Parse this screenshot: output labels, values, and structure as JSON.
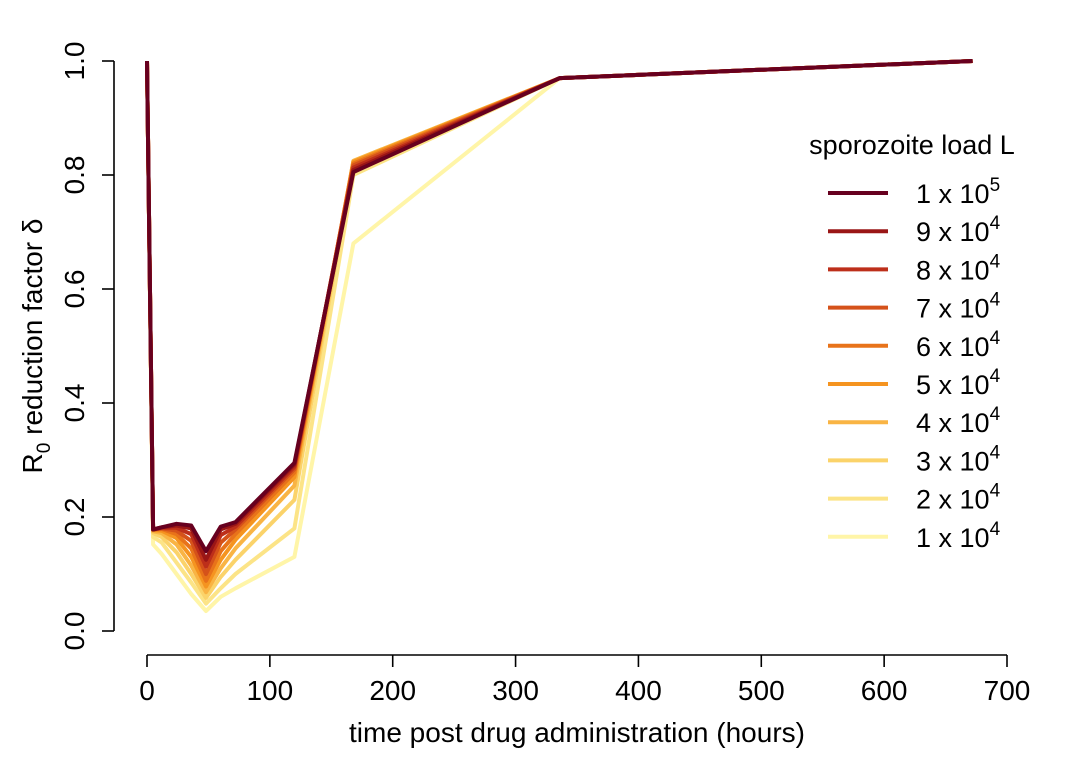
{
  "chart_data": {
    "type": "line",
    "xlabel": "time post drug administration (hours)",
    "ylabel": {
      "main": "R",
      "sub": "0",
      "rest": " reduction factor δ"
    },
    "xlim": [
      0,
      700
    ],
    "ylim": [
      0,
      1
    ],
    "xticks": [
      0,
      100,
      200,
      300,
      400,
      500,
      600,
      700
    ],
    "yticks": [
      0.0,
      0.2,
      0.4,
      0.6,
      0.8,
      1.0
    ],
    "ytick_labels": [
      "0.0",
      "0.2",
      "0.4",
      "0.6",
      "0.8",
      "1.0"
    ],
    "grid": false,
    "legend": {
      "title": "sporozoite load L",
      "position": "right"
    },
    "series": [
      {
        "label": {
          "base": "1 x 10",
          "exp": "4"
        },
        "color": "#fff5a8",
        "points": [
          [
            0,
            1.0
          ],
          [
            5,
            0.152
          ],
          [
            12,
            0.135
          ],
          [
            24,
            0.1
          ],
          [
            36,
            0.065
          ],
          [
            48,
            0.035
          ],
          [
            60,
            0.06
          ],
          [
            72,
            0.075
          ],
          [
            120,
            0.13
          ],
          [
            168,
            0.68
          ],
          [
            336,
            0.97
          ],
          [
            672,
            1.0
          ]
        ]
      },
      {
        "label": {
          "base": "2 x 10",
          "exp": "4"
        },
        "color": "#fce487",
        "points": [
          [
            0,
            1.0
          ],
          [
            5,
            0.165
          ],
          [
            12,
            0.155
          ],
          [
            24,
            0.12
          ],
          [
            36,
            0.085
          ],
          [
            48,
            0.048
          ],
          [
            60,
            0.075
          ],
          [
            72,
            0.1
          ],
          [
            120,
            0.18
          ],
          [
            168,
            0.8
          ],
          [
            336,
            0.97
          ],
          [
            672,
            1.0
          ]
        ]
      },
      {
        "label": {
          "base": "3 x 10",
          "exp": "4"
        },
        "color": "#fbd36a",
        "points": [
          [
            0,
            1.0
          ],
          [
            5,
            0.172
          ],
          [
            12,
            0.165
          ],
          [
            24,
            0.138
          ],
          [
            36,
            0.1
          ],
          [
            48,
            0.058
          ],
          [
            60,
            0.095
          ],
          [
            72,
            0.125
          ],
          [
            120,
            0.23
          ],
          [
            168,
            0.825
          ],
          [
            336,
            0.97
          ],
          [
            672,
            1.0
          ]
        ]
      },
      {
        "label": {
          "base": "4 x 10",
          "exp": "4"
        },
        "color": "#f9b444",
        "points": [
          [
            0,
            1.0
          ],
          [
            5,
            0.175
          ],
          [
            12,
            0.172
          ],
          [
            24,
            0.152
          ],
          [
            36,
            0.115
          ],
          [
            48,
            0.068
          ],
          [
            60,
            0.11
          ],
          [
            72,
            0.145
          ],
          [
            120,
            0.255
          ],
          [
            168,
            0.825
          ],
          [
            336,
            0.97
          ],
          [
            672,
            1.0
          ]
        ]
      },
      {
        "label": {
          "base": "5 x 10",
          "exp": "4"
        },
        "color": "#f59420",
        "points": [
          [
            0,
            1.0
          ],
          [
            5,
            0.177
          ],
          [
            12,
            0.176
          ],
          [
            24,
            0.163
          ],
          [
            36,
            0.13
          ],
          [
            48,
            0.078
          ],
          [
            60,
            0.125
          ],
          [
            72,
            0.16
          ],
          [
            120,
            0.27
          ],
          [
            168,
            0.823
          ],
          [
            336,
            0.97
          ],
          [
            672,
            1.0
          ]
        ]
      },
      {
        "label": {
          "base": "6 x 10",
          "exp": "4"
        },
        "color": "#e8731a",
        "points": [
          [
            0,
            1.0
          ],
          [
            5,
            0.178
          ],
          [
            12,
            0.179
          ],
          [
            24,
            0.17
          ],
          [
            36,
            0.145
          ],
          [
            48,
            0.088
          ],
          [
            60,
            0.14
          ],
          [
            72,
            0.17
          ],
          [
            120,
            0.278
          ],
          [
            168,
            0.82
          ],
          [
            336,
            0.97
          ],
          [
            672,
            1.0
          ]
        ]
      },
      {
        "label": {
          "base": "7 x 10",
          "exp": "4"
        },
        "color": "#d5521a",
        "points": [
          [
            0,
            1.0
          ],
          [
            5,
            0.178
          ],
          [
            12,
            0.18
          ],
          [
            24,
            0.176
          ],
          [
            36,
            0.158
          ],
          [
            48,
            0.1
          ],
          [
            60,
            0.155
          ],
          [
            72,
            0.178
          ],
          [
            120,
            0.284
          ],
          [
            168,
            0.817
          ],
          [
            336,
            0.97
          ],
          [
            672,
            1.0
          ]
        ]
      },
      {
        "label": {
          "base": "8 x 10",
          "exp": "4"
        },
        "color": "#bd2f1a",
        "points": [
          [
            0,
            1.0
          ],
          [
            5,
            0.178
          ],
          [
            12,
            0.181
          ],
          [
            24,
            0.181
          ],
          [
            36,
            0.17
          ],
          [
            48,
            0.113
          ],
          [
            60,
            0.168
          ],
          [
            72,
            0.183
          ],
          [
            120,
            0.288
          ],
          [
            168,
            0.813
          ],
          [
            336,
            0.97
          ],
          [
            672,
            1.0
          ]
        ]
      },
      {
        "label": {
          "base": "9 x 10",
          "exp": "4"
        },
        "color": "#9a1616",
        "points": [
          [
            0,
            1.0
          ],
          [
            5,
            0.178
          ],
          [
            12,
            0.182
          ],
          [
            24,
            0.185
          ],
          [
            36,
            0.18
          ],
          [
            48,
            0.125
          ],
          [
            60,
            0.178
          ],
          [
            72,
            0.188
          ],
          [
            120,
            0.292
          ],
          [
            168,
            0.809
          ],
          [
            336,
            0.97
          ],
          [
            672,
            1.0
          ]
        ]
      },
      {
        "label": {
          "base": "1 x 10",
          "exp": "5"
        },
        "color": "#67001f",
        "points": [
          [
            0,
            1.0
          ],
          [
            5,
            0.178
          ],
          [
            12,
            0.182
          ],
          [
            24,
            0.188
          ],
          [
            36,
            0.185
          ],
          [
            48,
            0.14
          ],
          [
            60,
            0.183
          ],
          [
            72,
            0.191
          ],
          [
            120,
            0.295
          ],
          [
            168,
            0.805
          ],
          [
            336,
            0.97
          ],
          [
            672,
            1.0
          ]
        ]
      }
    ]
  }
}
